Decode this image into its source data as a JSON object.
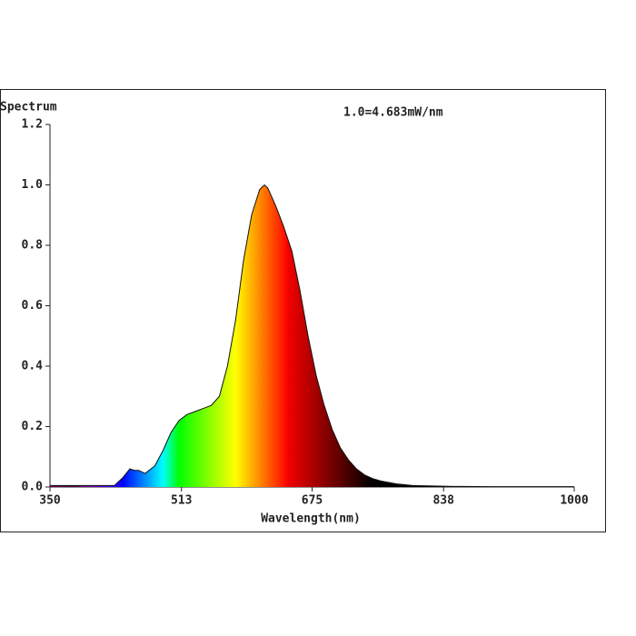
{
  "chart_data": {
    "type": "area",
    "title": "Spectrum",
    "annotation": "1.0=4.683mW/nm",
    "x_label": "Wavelength(nm)",
    "x": [
      350,
      400,
      430,
      440,
      449,
      455,
      460,
      468,
      480,
      490,
      500,
      510,
      520,
      530,
      540,
      550,
      560,
      570,
      580,
      590,
      600,
      610,
      616,
      620,
      630,
      640,
      650,
      660,
      670,
      680,
      690,
      700,
      710,
      720,
      730,
      740,
      750,
      760,
      780,
      800,
      850,
      900,
      950,
      1000
    ],
    "values": [
      0.005,
      0.005,
      0.005,
      0.03,
      0.06,
      0.055,
      0.055,
      0.045,
      0.07,
      0.12,
      0.18,
      0.22,
      0.24,
      0.25,
      0.26,
      0.27,
      0.3,
      0.4,
      0.55,
      0.75,
      0.9,
      0.985,
      1.0,
      0.99,
      0.93,
      0.86,
      0.78,
      0.65,
      0.5,
      0.37,
      0.27,
      0.19,
      0.13,
      0.09,
      0.06,
      0.04,
      0.028,
      0.02,
      0.01,
      0.005,
      0.002,
      0.001,
      0.001,
      0.001
    ],
    "xlim": [
      350,
      1000
    ],
    "xticks": [
      350,
      513,
      675,
      838,
      1000
    ],
    "ylim": [
      0,
      1.2
    ],
    "yticks": [
      {
        "value": 0,
        "label": "0.0"
      },
      0.2,
      0.4,
      0.6,
      0.8,
      {
        "value": 1,
        "label": "1.0"
      },
      1.2
    ]
  }
}
